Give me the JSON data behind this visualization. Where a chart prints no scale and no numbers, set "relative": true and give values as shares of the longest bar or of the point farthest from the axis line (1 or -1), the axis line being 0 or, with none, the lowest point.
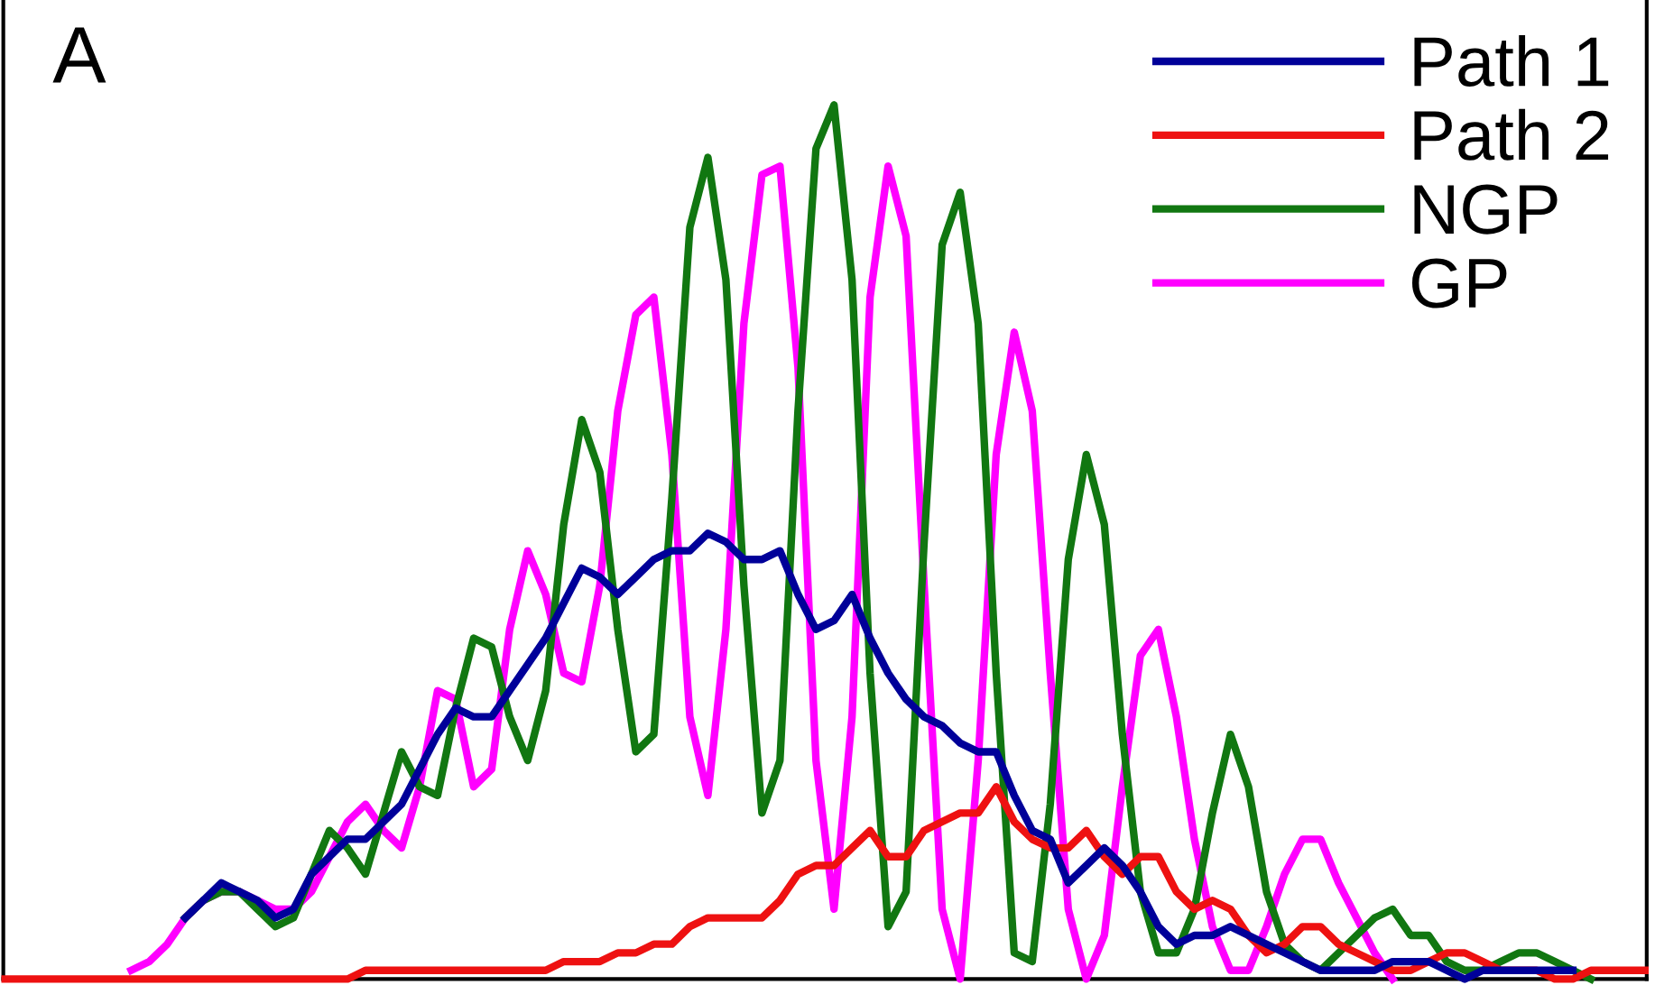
{
  "chart_data": {
    "type": "line",
    "relative": true,
    "legend": "top right",
    "marker": "none",
    "line_style": "solid",
    "annotations": [
      "A"
    ],
    "categories": [
      null,
      null,
      null,
      null,
      null,
      null,
      null,
      null,
      null,
      null,
      null,
      null,
      null,
      null,
      null,
      null,
      null,
      null,
      null,
      null,
      null,
      null,
      null,
      null,
      null,
      null,
      null,
      null,
      null,
      null,
      null,
      null,
      null,
      null,
      null,
      null,
      null,
      null,
      null,
      null,
      null,
      null,
      null,
      null,
      null,
      null,
      null,
      null,
      null,
      null,
      null,
      null,
      null,
      null,
      null,
      null,
      null,
      null,
      null,
      null,
      null,
      null,
      null,
      null,
      null,
      null,
      null,
      null,
      null,
      null,
      null,
      null,
      null,
      null,
      null,
      null,
      null,
      null,
      null,
      null,
      null,
      null,
      null,
      null,
      null,
      null,
      null,
      null,
      null,
      null,
      null,
      null
    ],
    "series": [
      {
        "name": "Path 1",
        "color": "#000099",
        "values": [
          null,
          null,
          null,
          null,
          null,
          null,
          null,
          null,
          null,
          null,
          0.07,
          0.09,
          0.11,
          0.1,
          0.09,
          0.07,
          0.08,
          0.12,
          0.14,
          0.16,
          0.16,
          0.18,
          0.2,
          0.24,
          0.28,
          0.31,
          0.3,
          0.3,
          0.33,
          0.36,
          0.39,
          0.43,
          0.47,
          0.46,
          0.44,
          0.46,
          0.48,
          0.49,
          0.49,
          0.51,
          0.5,
          0.48,
          0.48,
          0.49,
          0.44,
          0.4,
          0.41,
          0.44,
          0.39,
          0.35,
          0.32,
          0.3,
          0.29,
          0.27,
          0.26,
          0.26,
          0.21,
          0.17,
          0.16,
          0.11,
          0.13,
          0.15,
          0.13,
          0.1,
          0.06,
          0.04,
          0.05,
          0.05,
          0.06,
          0.05,
          0.04,
          0.03,
          0.02,
          0.01,
          0.01,
          0.01,
          0.01,
          0.02,
          0.02,
          0.02,
          0.01,
          0,
          0.01,
          0.01,
          0.01,
          0.01,
          0.01,
          0.01,
          null,
          null,
          null,
          null
        ]
      },
      {
        "name": "Path 2",
        "color": "#ee1111",
        "values": [
          0,
          0,
          0,
          0,
          0,
          0,
          0,
          0,
          0,
          0,
          0,
          0,
          0,
          0,
          0,
          0,
          0,
          0,
          0,
          0,
          0.01,
          0.01,
          0.01,
          0.01,
          0.01,
          0.01,
          0.01,
          0.01,
          0.01,
          0.01,
          0.01,
          0.02,
          0.02,
          0.02,
          0.03,
          0.03,
          0.04,
          0.04,
          0.06,
          0.07,
          0.07,
          0.07,
          0.07,
          0.09,
          0.12,
          0.13,
          0.13,
          0.15,
          0.17,
          0.14,
          0.14,
          0.17,
          0.18,
          0.19,
          0.19,
          0.22,
          0.18,
          0.16,
          0.15,
          0.15,
          0.17,
          0.14,
          0.12,
          0.14,
          0.14,
          0.1,
          0.08,
          0.09,
          0.08,
          0.05,
          0.03,
          0.04,
          0.06,
          0.06,
          0.04,
          0.03,
          0.02,
          0.01,
          0.01,
          0.02,
          0.03,
          0.03,
          0.02,
          0.01,
          0.01,
          0.01,
          0,
          0,
          0.01,
          0.01,
          0.01,
          0.01
        ]
      },
      {
        "name": "NGP",
        "color": "#117711",
        "values": [
          null,
          null,
          null,
          null,
          null,
          null,
          null,
          null,
          null,
          null,
          0.07,
          0.09,
          0.1,
          0.1,
          0.08,
          0.06,
          0.07,
          0.12,
          0.17,
          0.15,
          0.12,
          0.19,
          0.26,
          0.22,
          0.21,
          0.31,
          0.39,
          0.38,
          0.3,
          0.25,
          0.33,
          0.52,
          0.64,
          0.58,
          0.4,
          0.26,
          0.28,
          0.55,
          0.86,
          0.94,
          0.8,
          0.45,
          0.19,
          0.25,
          0.65,
          0.95,
          1,
          0.8,
          0.35,
          0.06,
          0.1,
          0.5,
          0.84,
          0.9,
          0.75,
          0.35,
          0.03,
          0.02,
          0.2,
          0.48,
          0.6,
          0.52,
          0.28,
          0.1,
          0.03,
          0.03,
          0.08,
          0.19,
          0.28,
          0.22,
          0.1,
          0.04,
          0.02,
          0.01,
          0.03,
          0.05,
          0.07,
          0.08,
          0.05,
          0.05,
          0.02,
          0.01,
          0.01,
          0.02,
          0.03,
          0.03,
          0.02,
          0.01,
          0,
          null,
          null,
          null
        ]
      },
      {
        "name": "GP",
        "color": "#ff00ff",
        "values": [
          null,
          null,
          null,
          null,
          null,
          null,
          null,
          0.01,
          0.02,
          0.04,
          0.07,
          0.09,
          0.1,
          0.1,
          0.09,
          0.08,
          0.08,
          0.1,
          0.14,
          0.18,
          0.2,
          0.17,
          0.15,
          0.22,
          0.33,
          0.32,
          0.22,
          0.24,
          0.4,
          0.49,
          0.44,
          0.35,
          0.34,
          0.45,
          0.65,
          0.76,
          0.78,
          0.6,
          0.3,
          0.21,
          0.4,
          0.75,
          0.92,
          0.93,
          0.7,
          0.25,
          0.08,
          0.3,
          0.78,
          0.93,
          0.85,
          0.45,
          0.08,
          0,
          0.25,
          0.6,
          0.74,
          0.65,
          0.35,
          0.08,
          0,
          0.05,
          0.22,
          0.37,
          0.4,
          0.3,
          0.16,
          0.06,
          0.01,
          0.01,
          0.06,
          0.12,
          0.16,
          0.16,
          0.11,
          0.07,
          0.03,
          0,
          null,
          null,
          null,
          null,
          null,
          null,
          null,
          null,
          null,
          null,
          null,
          null,
          null,
          null
        ]
      }
    ]
  }
}
